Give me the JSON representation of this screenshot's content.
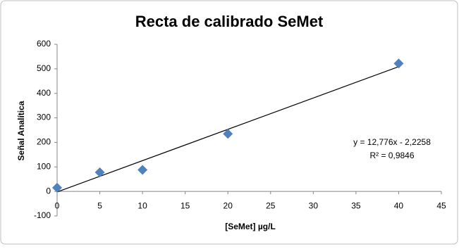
{
  "chart_data": {
    "type": "scatter",
    "title": "Recta de calibrado SeMet",
    "x_label": "[SeMet] µg/L",
    "y_label": "Señal Analítica",
    "series": [
      {
        "name": "SeMet",
        "color": "#4f81bd",
        "x": [
          0,
          5,
          10,
          20,
          40
        ],
        "values": [
          15,
          78,
          88,
          235,
          522
        ]
      }
    ],
    "trendline": {
      "slope": 12.776,
      "intercept": -2.2258,
      "color": "#000000",
      "equation": "y = 12,776x - 2,2258",
      "r_squared": "R² = 0,9846"
    },
    "xlim": [
      0,
      45
    ],
    "xticks": [
      0,
      5,
      10,
      15,
      20,
      25,
      30,
      35,
      40,
      45
    ],
    "ylim": [
      -100,
      600
    ],
    "yticks": [
      -100,
      0,
      100,
      200,
      300,
      400,
      500,
      600
    ],
    "grid": false
  }
}
